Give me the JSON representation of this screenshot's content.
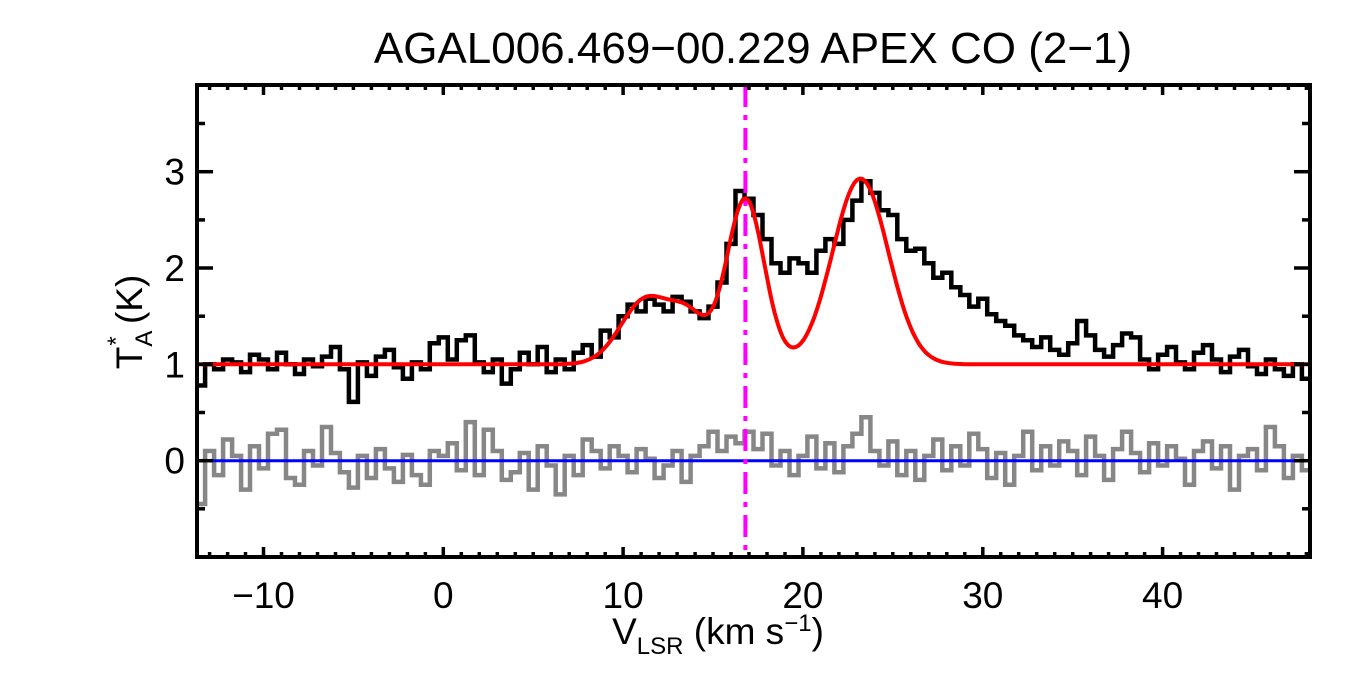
{
  "figure": {
    "title": "AGAL006.469−00.229  APEX CO (2−1)"
  },
  "chart_data": {
    "type": "line",
    "subtype": "spectrum-histogram-with-gaussian-fit",
    "title": "AGAL006.469−00.229  APEX CO (2−1)",
    "xlabel": {
      "main": "V",
      "sub": "LSR",
      "rest": " (km s",
      "sup": "−1",
      "close": ")"
    },
    "ylabel": {
      "main": "T",
      "sup": "*",
      "subscript": "A",
      "rest": " (K)"
    },
    "xlim": [
      -13.7,
      48.2
    ],
    "ylim": [
      -1.0,
      3.9
    ],
    "xticks_major": [
      -10,
      0,
      10,
      20,
      30,
      40
    ],
    "xtick_labels": [
      "−10",
      "0",
      "10",
      "20",
      "30",
      "40"
    ],
    "x_minor_step": 1,
    "yticks_major": [
      0,
      1,
      2,
      3
    ],
    "ytick_labels": [
      "0",
      "1",
      "2",
      "3"
    ],
    "y_minor_step": 0.5,
    "bin_start": -13.75,
    "bin_width": 0.5,
    "spectrum": [
      0.78,
      1.0,
      0.95,
      1.05,
      1.02,
      0.92,
      1.1,
      1.05,
      0.95,
      1.12,
      1.0,
      0.9,
      1.05,
      0.98,
      1.08,
      1.18,
      0.95,
      0.61,
      1.02,
      0.88,
      1.08,
      1.15,
      0.97,
      0.85,
      1.02,
      0.95,
      1.22,
      1.28,
      1.05,
      1.25,
      1.3,
      1.02,
      0.92,
      1.05,
      0.8,
      0.95,
      1.12,
      1.0,
      1.18,
      0.92,
      1.05,
      0.95,
      1.12,
      1.2,
      1.08,
      1.35,
      1.28,
      1.5,
      1.62,
      1.55,
      1.68,
      1.62,
      1.55,
      1.7,
      1.65,
      1.55,
      1.48,
      1.6,
      1.85,
      2.25,
      2.8,
      2.72,
      2.55,
      2.3,
      2.05,
      1.95,
      2.1,
      2.05,
      1.95,
      2.18,
      2.3,
      2.25,
      2.5,
      2.7,
      2.9,
      2.78,
      2.6,
      2.55,
      2.3,
      2.18,
      2.2,
      2.05,
      1.9,
      1.95,
      1.8,
      1.72,
      1.6,
      1.68,
      1.52,
      1.45,
      1.4,
      1.3,
      1.25,
      1.18,
      1.28,
      1.15,
      1.1,
      1.22,
      1.45,
      1.3,
      1.15,
      1.08,
      1.2,
      1.32,
      1.28,
      1.05,
      0.95,
      1.1,
      1.18,
      1.02,
      0.95,
      1.12,
      1.2,
      1.05,
      0.92,
      1.08,
      1.15,
      0.98,
      0.9,
      1.05,
      0.95,
      0.88,
      1.0,
      0.85
    ],
    "residual": [
      -0.45,
      0.1,
      -0.15,
      0.22,
      0.05,
      -0.3,
      0.15,
      -0.08,
      0.28,
      0.32,
      -0.18,
      -0.25,
      0.1,
      -0.05,
      0.35,
      0.08,
      -0.12,
      -0.28,
      0.05,
      -0.18,
      0.12,
      -0.08,
      -0.22,
      0.06,
      -0.15,
      -0.25,
      0.1,
      0.05,
      0.18,
      -0.1,
      0.4,
      -0.15,
      0.32,
      0.1,
      -0.2,
      -0.12,
      0.08,
      -0.3,
      0.15,
      -0.05,
      -0.35,
      0.05,
      -0.15,
      0.22,
      0.1,
      -0.08,
      0.15,
      0.05,
      -0.12,
      0.12,
      0.02,
      -0.18,
      -0.05,
      0.1,
      -0.22,
      0.05,
      0.15,
      0.3,
      0.1,
      0.25,
      0.18,
      0.3,
      0.12,
      0.28,
      -0.05,
      0.1,
      -0.15,
      0.05,
      0.25,
      -0.08,
      0.18,
      -0.12,
      0.15,
      0.28,
      0.45,
      0.1,
      -0.05,
      0.2,
      -0.15,
      0.1,
      -0.2,
      0.05,
      0.22,
      -0.1,
      0.15,
      -0.05,
      0.28,
      0.12,
      -0.18,
      0.08,
      -0.25,
      0.05,
      0.3,
      -0.1,
      0.15,
      -0.05,
      0.2,
      0.1,
      -0.15,
      0.25,
      0.05,
      -0.2,
      0.12,
      0.3,
      0.08,
      -0.12,
      0.18,
      -0.05,
      0.15,
      0.02,
      -0.25,
      0.1,
      0.2,
      -0.08,
      0.15,
      -0.3,
      0.05,
      0.12,
      -0.1,
      0.35,
      0.15,
      -0.18,
      0.05,
      -0.1
    ],
    "fit_baseline": 1.0,
    "fit_gaussians": [
      {
        "amp": 0.68,
        "center": 11.3,
        "sigma": 1.4
      },
      {
        "amp": 0.42,
        "center": 13.7,
        "sigma": 1.0
      },
      {
        "amp": 1.72,
        "center": 16.8,
        "sigma": 1.05
      },
      {
        "amp": 1.93,
        "center": 23.2,
        "sigma": 1.55
      }
    ],
    "zero_line_level": 0.0,
    "vlsr_marker": 16.8,
    "grid": false,
    "legend": "none",
    "colors": {
      "spectrum": "#000000",
      "residual": "#878787",
      "fit": "#ff0000",
      "zero_line": "#0000ff",
      "marker": "#ff00ff",
      "axes": "#000000",
      "background": "#ffffff"
    }
  }
}
